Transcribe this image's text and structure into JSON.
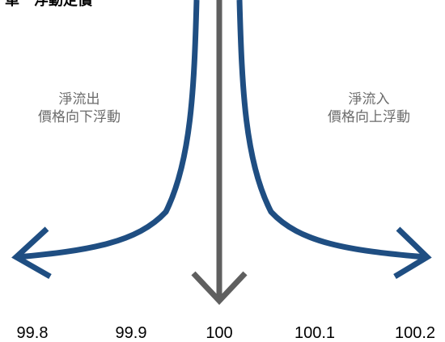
{
  "title": "單一浮動定價",
  "left_note": {
    "line1": "淨流出",
    "line2": "價格向下浮動"
  },
  "right_note": {
    "line1": "淨流入",
    "line2": "價格向上浮動"
  },
  "axis_ticks": [
    "99.8",
    "99.9",
    "100",
    "100.1",
    "100.2"
  ],
  "colors": {
    "curve": "#1f4e82",
    "center_arrow": "#5f5f5f",
    "note_text": "#6b6b6b"
  }
}
